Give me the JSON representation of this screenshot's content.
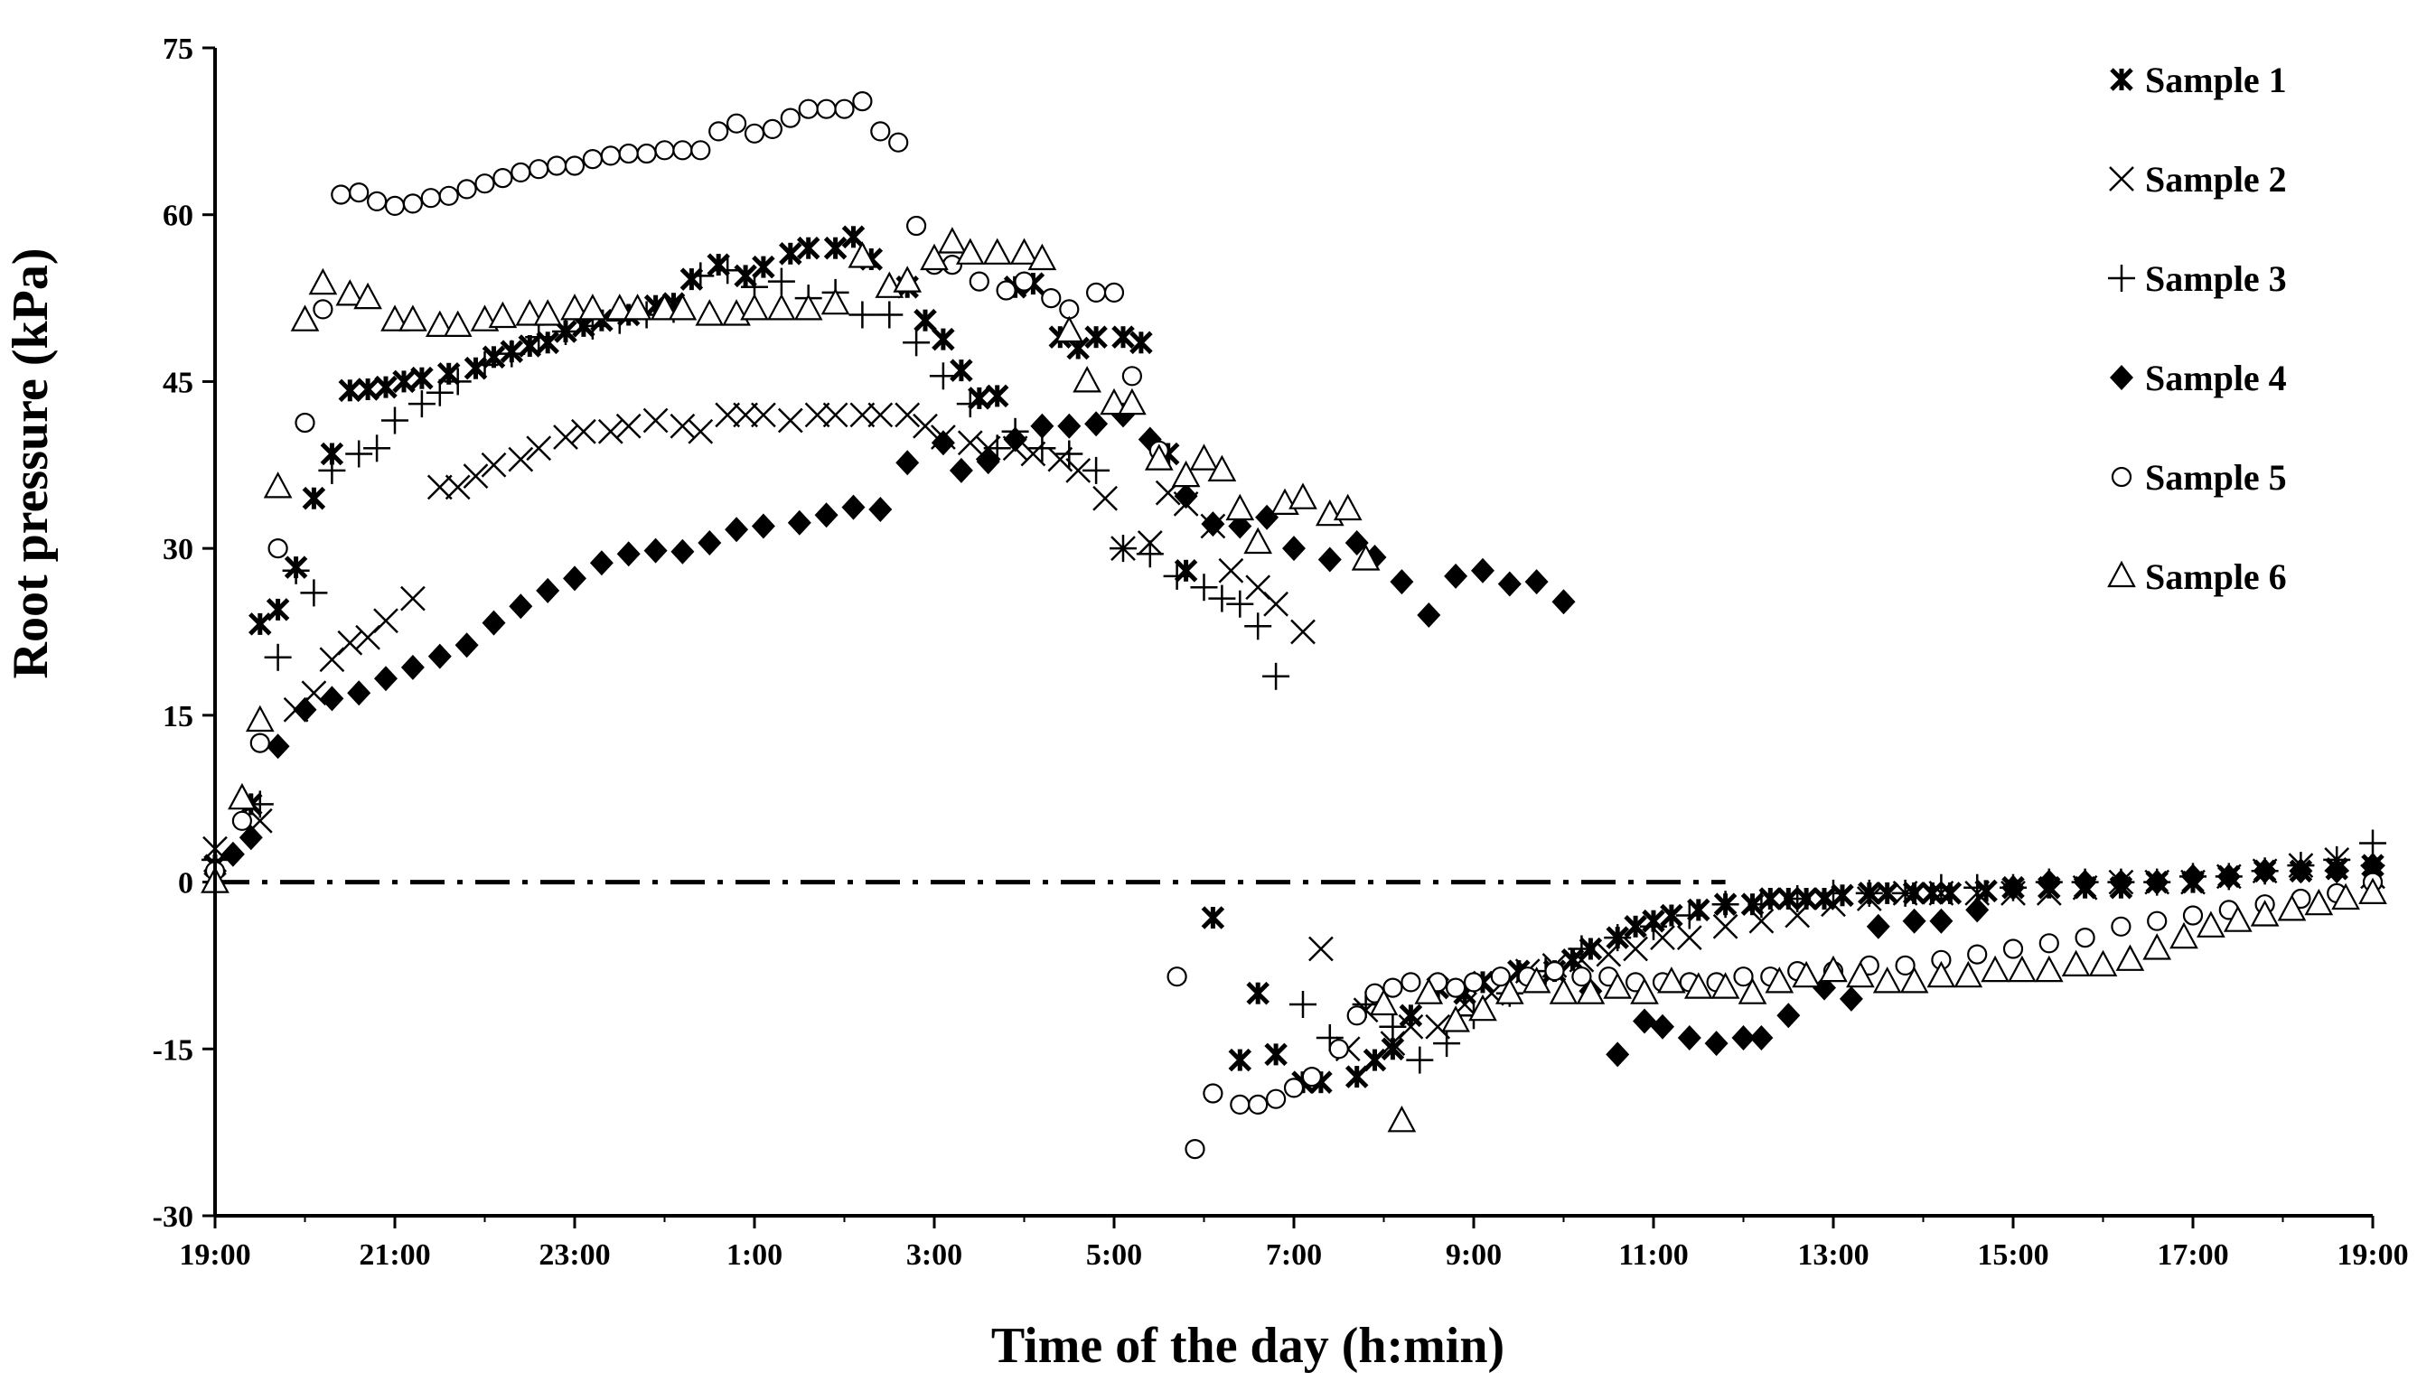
{
  "chart_data": {
    "type": "scatter",
    "title": "",
    "xlabel": "Time of the day (h:min)",
    "ylabel": "Root pressure (kPa)",
    "x_unit": "hours after 19:00",
    "xlim": [
      0,
      24
    ],
    "ylim": [
      -30,
      75
    ],
    "yticks": [
      -30,
      -15,
      0,
      15,
      30,
      45,
      60,
      75
    ],
    "xtick_hours": [
      0,
      2,
      4,
      6,
      8,
      10,
      12,
      14,
      16,
      18,
      20,
      22,
      24
    ],
    "xtick_labels": [
      "19:00",
      "21:00",
      "23:00",
      "1:00",
      "3:00",
      "5:00",
      "7:00",
      "9:00",
      "11:00",
      "13:00",
      "15:00",
      "17:00",
      "19:00"
    ],
    "reference_line": {
      "y": 0,
      "style": "dash-dot",
      "x_from": 0,
      "x_to": 16.8
    },
    "legend_position": "top-right",
    "colors": {
      "marker": "#000000",
      "axis": "#000000",
      "background": "#ffffff"
    },
    "series": [
      {
        "name": "Sample 1",
        "marker": "asterisk",
        "x": [
          0,
          0.4,
          0.5,
          0.7,
          0.9,
          1.1,
          1.3,
          1.5,
          1.7,
          1.9,
          2.1,
          2.3,
          2.6,
          2.9,
          3.1,
          3.3,
          3.5,
          3.7,
          3.9,
          4.1,
          4.3,
          4.6,
          4.9,
          5.1,
          5.3,
          5.6,
          5.9,
          6.1,
          6.4,
          6.6,
          6.9,
          7.1,
          7.3,
          7.7,
          7.9,
          8.1,
          8.3,
          8.5,
          8.7,
          8.9,
          9.1,
          9.4,
          9.6,
          9.8,
          10.1,
          10.3,
          10.6,
          10.8,
          11.1,
          11.4,
          11.6,
          11.8,
          12.1,
          12.3,
          12.7,
          12.9,
          13.1,
          13.3,
          13.6,
          13.9,
          14.1,
          14.5,
          14.9,
          15.1,
          15.3,
          15.6,
          15.8,
          16.0,
          16.2,
          16.5,
          16.8,
          17.1,
          17.3,
          17.5,
          17.7,
          17.9,
          18.1,
          18.4,
          18.6,
          18.9,
          19.1,
          19.3,
          19.7,
          20.0,
          20.4,
          20.8,
          21.2,
          21.6,
          22.0,
          22.4,
          22.8,
          23.2,
          23.6,
          24.0
        ],
        "y": [
          1.5,
          7,
          23.2,
          24.5,
          28.3,
          34.5,
          38.5,
          44.2,
          44.3,
          44.5,
          45,
          45.3,
          45.7,
          46.2,
          47.2,
          47.7,
          48.2,
          48.5,
          49.5,
          50.0,
          50.5,
          51,
          51.8,
          52.0,
          54.2,
          55.5,
          54.5,
          55.3,
          56.5,
          57,
          57,
          58,
          56,
          53.5,
          50.5,
          48.8,
          46,
          43.5,
          43.7,
          53.5,
          53.8,
          49,
          48,
          49,
          49,
          48.5,
          38.5,
          28,
          -3.2,
          -16,
          -10,
          -15.5,
          -18,
          -18,
          -17.5,
          -16,
          -15,
          -12,
          -9.5,
          -10,
          -9,
          -8,
          -8,
          -7,
          -6,
          -5,
          -4,
          -3.5,
          -3,
          -2.5,
          -2,
          -2,
          -1.5,
          -1.5,
          -1.5,
          -1.5,
          -1.2,
          -1,
          -1,
          -1,
          -1,
          -1,
          -0.8,
          -0.5,
          -0.5,
          -0.5,
          -0.5,
          0,
          0,
          0.5,
          1,
          1,
          1.2,
          1.5
        ]
      },
      {
        "name": "Sample 2",
        "marker": "x",
        "x": [
          0,
          0.5,
          0.9,
          1.1,
          1.3,
          1.5,
          1.7,
          1.9,
          2.2,
          2.5,
          2.7,
          2.9,
          3.1,
          3.4,
          3.6,
          3.9,
          4.1,
          4.4,
          4.6,
          4.9,
          5.2,
          5.4,
          5.7,
          5.9,
          6.1,
          6.4,
          6.7,
          6.9,
          7.2,
          7.4,
          7.7,
          7.9,
          8.1,
          8.4,
          8.6,
          8.9,
          9.1,
          9.4,
          9.6,
          9.9,
          10.1,
          10.4,
          10.6,
          10.8,
          11.1,
          11.3,
          11.6,
          11.8,
          12.1,
          12.3,
          12.6,
          12.8,
          13.1,
          13.3,
          13.6,
          13.9,
          14.2,
          14.6,
          14.9,
          15.2,
          15.5,
          15.8,
          16.1,
          16.4,
          16.8,
          17.2,
          17.6,
          18.0,
          18.4,
          18.8,
          19.2,
          19.6,
          20.0,
          20.4,
          20.8,
          21.2,
          21.6,
          22.0,
          22.4,
          22.8,
          23.2,
          23.6,
          24.0
        ],
        "y": [
          3,
          5.5,
          15.5,
          17,
          20,
          21.5,
          22,
          23.5,
          25.5,
          35.5,
          35.5,
          36.5,
          37.5,
          38,
          39,
          40,
          40.5,
          40.5,
          41,
          41.5,
          41,
          40.5,
          42,
          42,
          42,
          41.5,
          42,
          42,
          42,
          42,
          42,
          41,
          40,
          39.5,
          39,
          39,
          38.5,
          38,
          37,
          34.5,
          30,
          30.5,
          35,
          34,
          32,
          28,
          26.5,
          25,
          22.5,
          -6,
          -15,
          -11.5,
          -14.5,
          -13,
          -13,
          -11,
          -10,
          -8,
          -7.5,
          -7,
          -6.5,
          -6,
          -5,
          -5,
          -4,
          -3.5,
          -3,
          -2,
          -1.5,
          -1,
          -1,
          -1,
          -1,
          -1,
          -0.5,
          0,
          0,
          0,
          0.5,
          1,
          1.5,
          2,
          0.5
        ]
      },
      {
        "name": "Sample 3",
        "marker": "plus",
        "x": [
          0,
          0.5,
          0.7,
          0.9,
          1.1,
          1.3,
          1.6,
          1.8,
          2.0,
          2.3,
          2.5,
          2.7,
          3.0,
          3.3,
          3.6,
          3.9,
          4.2,
          4.5,
          4.8,
          5.1,
          5.4,
          5.7,
          6.0,
          6.3,
          6.6,
          6.9,
          7.2,
          7.5,
          7.8,
          8.1,
          8.4,
          8.7,
          8.9,
          9.2,
          9.5,
          9.8,
          10.1,
          10.4,
          10.7,
          11.0,
          11.2,
          11.4,
          11.6,
          11.8,
          12.1,
          12.4,
          12.8,
          13.1,
          13.4,
          13.7,
          14.0,
          14.4,
          14.8,
          15.2,
          15.6,
          16.0,
          16.4,
          16.8,
          17.2,
          17.6,
          18.0,
          18.4,
          18.8,
          19.2,
          19.6,
          20.0,
          20.4,
          20.8,
          21.2,
          21.6,
          22.0,
          22.4,
          22.8,
          23.2,
          23.6,
          24.0
        ],
        "y": [
          2,
          7,
          20.2,
          28,
          26,
          37,
          38.5,
          39,
          41.5,
          43,
          44,
          45,
          46.5,
          47.5,
          49,
          49.5,
          50,
          50.5,
          51,
          51.5,
          54.5,
          55,
          53.5,
          54,
          52.5,
          53,
          51,
          51,
          48.5,
          45.5,
          43,
          39,
          40.5,
          39,
          38.5,
          37,
          30,
          29.5,
          27.5,
          26.5,
          25.5,
          25,
          23,
          18.5,
          -11,
          -14,
          -11,
          -13,
          -16,
          -14.5,
          -12,
          -10,
          -8,
          -6,
          -5,
          -4,
          -3,
          -2,
          -2,
          -1.5,
          -1,
          -1,
          -1,
          -0.5,
          -0.5,
          -0.5,
          0,
          0,
          0,
          0,
          0.5,
          0.5,
          1,
          1.5,
          2,
          3.5
        ]
      },
      {
        "name": "Sample 4",
        "marker": "diamond",
        "x": [
          0,
          0.2,
          0.4,
          0.7,
          1.0,
          1.3,
          1.6,
          1.9,
          2.2,
          2.5,
          2.8,
          3.1,
          3.4,
          3.7,
          4.0,
          4.3,
          4.6,
          4.9,
          5.2,
          5.5,
          5.8,
          6.1,
          6.5,
          6.8,
          7.1,
          7.4,
          7.7,
          8.1,
          8.3,
          8.6,
          8.9,
          9.2,
          9.5,
          9.8,
          10.1,
          10.4,
          10.8,
          11.1,
          11.4,
          11.7,
          12.0,
          12.4,
          12.7,
          12.9,
          13.2,
          13.5,
          13.8,
          14.1,
          14.4,
          14.7,
          15.0,
          15.3,
          15.6,
          15.9,
          16.1,
          16.4,
          16.7,
          17.0,
          17.2,
          17.5,
          17.9,
          18.2,
          18.5,
          18.9,
          19.2,
          19.6,
          20.0,
          20.4,
          20.8,
          21.2,
          21.6,
          22.0,
          22.4,
          22.8,
          23.2,
          23.6,
          24.0
        ],
        "y": [
          1,
          2.5,
          4,
          12.2,
          15.5,
          16.5,
          17,
          18.3,
          19.3,
          20.3,
          21.3,
          23.3,
          24.8,
          26.2,
          27.3,
          28.7,
          29.5,
          29.8,
          29.7,
          30.5,
          31.7,
          32,
          32.3,
          33,
          33.7,
          33.5,
          37.7,
          39.5,
          37,
          37.8,
          39.8,
          41,
          41,
          41.2,
          42,
          39.8,
          34.7,
          32.2,
          32,
          32.8,
          30,
          29,
          30.5,
          29.2,
          27,
          24,
          27.5,
          28,
          26.8,
          27,
          25.2,
          -9.8,
          -15.5,
          -12.5,
          -13,
          -14,
          -14.5,
          -14,
          -14,
          -12,
          -9.5,
          -10.5,
          -4,
          -3.5,
          -3.5,
          -2.5,
          -0.5,
          0,
          0,
          0,
          0,
          0.5,
          0.5,
          1,
          1,
          1,
          1.5
        ]
      },
      {
        "name": "Sample 5",
        "marker": "circle",
        "x": [
          0,
          0.3,
          0.5,
          0.7,
          1.0,
          1.2,
          1.4,
          1.6,
          1.8,
          2.0,
          2.2,
          2.4,
          2.6,
          2.8,
          3.0,
          3.2,
          3.4,
          3.6,
          3.8,
          4.0,
          4.2,
          4.4,
          4.6,
          4.8,
          5.0,
          5.2,
          5.4,
          5.6,
          5.8,
          6.0,
          6.2,
          6.4,
          6.6,
          6.8,
          7.0,
          7.2,
          7.4,
          7.6,
          7.8,
          8.0,
          8.2,
          8.5,
          8.8,
          9.0,
          9.3,
          9.5,
          9.8,
          10.0,
          10.2,
          10.5,
          10.7,
          10.9,
          11.1,
          11.4,
          11.6,
          11.8,
          12.0,
          12.2,
          12.5,
          12.7,
          12.9,
          13.1,
          13.3,
          13.6,
          13.8,
          14.0,
          14.3,
          14.6,
          14.9,
          15.2,
          15.5,
          15.8,
          16.1,
          16.4,
          16.7,
          17.0,
          17.3,
          17.6,
          18.0,
          18.4,
          18.8,
          19.2,
          19.6,
          20.0,
          20.4,
          20.8,
          21.2,
          21.6,
          22.0,
          22.4,
          22.8,
          23.2,
          23.6,
          24.0
        ],
        "y": [
          1,
          5.5,
          12.5,
          30,
          41.3,
          51.5,
          61.8,
          62,
          61.2,
          60.8,
          61,
          61.5,
          61.7,
          62.3,
          62.8,
          63.3,
          63.8,
          64.1,
          64.4,
          64.4,
          65,
          65.3,
          65.5,
          65.5,
          65.8,
          65.8,
          65.8,
          67.5,
          68.2,
          67.3,
          67.7,
          68.7,
          69.5,
          69.5,
          69.5,
          70.2,
          67.5,
          66.5,
          59,
          55.5,
          55.5,
          54,
          53.2,
          54,
          52.5,
          51.5,
          53,
          53,
          45.5,
          38.8,
          -8.5,
          -24,
          -19,
          -20,
          -20,
          -19.5,
          -18.5,
          -17.5,
          -15,
          -12,
          -10,
          -9.5,
          -9,
          -9,
          -9.5,
          -9,
          -8.5,
          -8.5,
          -8,
          -8.5,
          -8.5,
          -9,
          -9,
          -9,
          -9,
          -8.5,
          -8.5,
          -8,
          -8,
          -7.5,
          -7.5,
          -7,
          -6.5,
          -6,
          -5.5,
          -5,
          -4,
          -3.5,
          -3,
          -2.5,
          -2,
          -1.5,
          -1,
          0
        ]
      },
      {
        "name": "Sample 6",
        "marker": "triangle",
        "x": [
          0,
          0.3,
          0.5,
          0.7,
          1.0,
          1.2,
          1.5,
          1.7,
          2.0,
          2.2,
          2.5,
          2.7,
          3.0,
          3.2,
          3.5,
          3.7,
          4.0,
          4.2,
          4.5,
          4.7,
          5.0,
          5.2,
          5.5,
          5.8,
          6.0,
          6.3,
          6.6,
          6.9,
          7.2,
          7.5,
          7.7,
          8.0,
          8.2,
          8.4,
          8.7,
          9.0,
          9.2,
          9.5,
          9.7,
          10.0,
          10.2,
          10.5,
          10.8,
          11.0,
          11.2,
          11.4,
          11.6,
          11.9,
          12.1,
          12.4,
          12.6,
          12.8,
          13.0,
          13.2,
          13.5,
          13.8,
          14.1,
          14.4,
          14.7,
          15.0,
          15.3,
          15.6,
          15.9,
          16.2,
          16.5,
          16.8,
          17.1,
          17.4,
          17.7,
          18.0,
          18.3,
          18.6,
          18.9,
          19.2,
          19.5,
          19.8,
          20.1,
          20.4,
          20.7,
          21.0,
          21.3,
          21.6,
          21.9,
          22.2,
          22.5,
          22.8,
          23.1,
          23.4,
          23.7,
          24.0
        ],
        "y": [
          0,
          7.5,
          14.5,
          35.5,
          50.5,
          53.8,
          52.8,
          52.5,
          50.5,
          50.5,
          50,
          50,
          50.5,
          50.8,
          51,
          51,
          51.5,
          51.5,
          51.5,
          51.5,
          51.5,
          51.5,
          51,
          51,
          51.5,
          51.5,
          51.5,
          52,
          56.2,
          53.5,
          54,
          56,
          57.5,
          56.5,
          56.5,
          56.5,
          56,
          49.5,
          45,
          43,
          43,
          38,
          36.5,
          38,
          37,
          33.5,
          30.5,
          34,
          34.5,
          33,
          33.5,
          29,
          -11,
          -21.5,
          -10,
          -12.5,
          -11.5,
          -10,
          -9,
          -10,
          -10,
          -9.5,
          -10,
          -9,
          -9.5,
          -9.5,
          -10,
          -9,
          -8.5,
          -8,
          -8.5,
          -9,
          -9,
          -8.5,
          -8.5,
          -8,
          -8,
          -8,
          -7.5,
          -7.5,
          -7,
          -6,
          -5,
          -4,
          -3.5,
          -3,
          -2.5,
          -2,
          -1.5,
          -1
        ]
      }
    ]
  }
}
